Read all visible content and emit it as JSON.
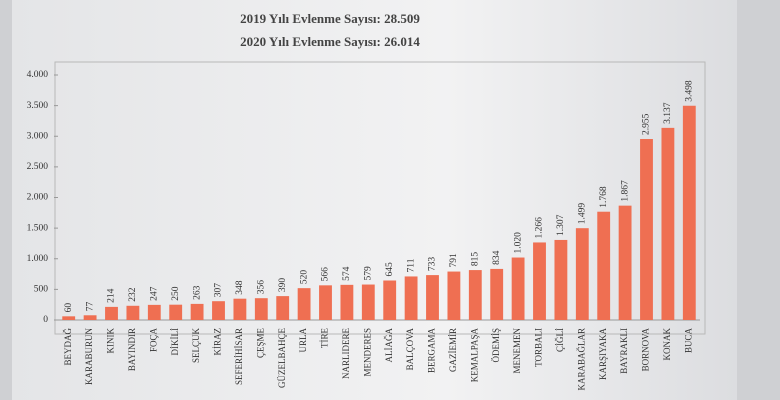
{
  "chart_data": {
    "type": "bar",
    "title": "2019 Yılı Evlenme Sayısı: 28.509",
    "subtitle": "2020 Yılı Evlenme Sayısı: 26.014",
    "categories": [
      "BEYDAĞ",
      "KARABURUN",
      "KINIK",
      "BAYINDIR",
      "FOÇA",
      "DİKİLİ",
      "SELÇUK",
      "KİRAZ",
      "SEFERİHİSAR",
      "ÇEŞME",
      "GÜZELBAHÇE",
      "URLA",
      "TİRE",
      "NARLIDERE",
      "MENDERES",
      "ALİAĞA",
      "BALÇOVA",
      "BERGAMA",
      "GAZİEMİR",
      "KEMALPAŞA",
      "ÖDEMİŞ",
      "MENEMEN",
      "TORBALI",
      "ÇİĞLİ",
      "KARABAĞLAR",
      "KARŞIYAKA",
      "BAYRAKLI",
      "BORNOVA",
      "KONAK",
      "BUCA"
    ],
    "values": [
      60,
      77,
      214,
      232,
      247,
      250,
      263,
      307,
      348,
      356,
      390,
      520,
      566,
      574,
      579,
      645,
      711,
      733,
      791,
      815,
      834,
      1020,
      1266,
      1307,
      1499,
      1768,
      1867,
      2955,
      3137,
      3498
    ],
    "value_labels": [
      "60",
      "77",
      "214",
      "232",
      "247",
      "250",
      "263",
      "307",
      "348",
      "356",
      "390",
      "520",
      "566",
      "574",
      "579",
      "645",
      "711",
      "733",
      "791",
      "815",
      "834",
      "1.020",
      "1.266",
      "1.307",
      "1.499",
      "1.768",
      "1.867",
      "2.955",
      "3.137",
      "3.498"
    ],
    "color": "#ef6f52",
    "ylim": [
      0,
      4000
    ],
    "yticks": [
      0,
      500,
      {
        "value": 1000,
        "label": "1.000"
      },
      {
        "value": 1500,
        "label": "1.500"
      },
      {
        "value": 2000,
        "label": "2.000"
      },
      {
        "value": 2500,
        "label": "2.500"
      },
      {
        "value": 3000,
        "label": "3.000"
      },
      {
        "value": 3500,
        "label": "3.500"
      },
      {
        "value": 4000,
        "label": "4.000"
      }
    ],
    "grid": false
  }
}
